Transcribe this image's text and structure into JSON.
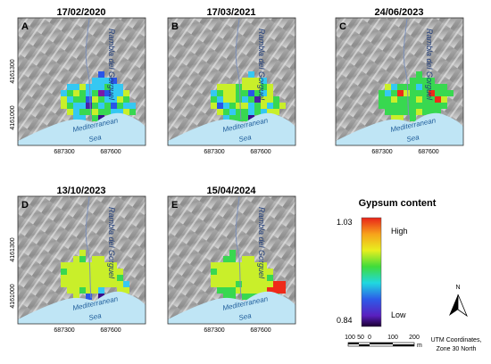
{
  "panels": [
    {
      "date": "17/02/2020",
      "letter": "A",
      "grid": [
        "........d.......",
        ".......cccd.....",
        "...ccacccbcc....",
        "..cbabcbfdcca...",
        "..acbbdabccab...",
        "..abccebcbdbcc..",
        "...acbbabbccab..",
        "....cc.bg.ac...."
      ]
    },
    {
      "date": "17/03/2021",
      "letter": "B",
      "grid": [
        "........c.......",
        ".......aaac.....",
        "...aaabaaaba....",
        "..cbaabbdbca....",
        "..bcaabcbeaab...",
        "..adcbaacbacba..",
        "...abcbbcbcaa...",
        "....cbbbg.......",
        "........b......."
      ]
    },
    {
      "date": "24/06/2023",
      "letter": "C",
      "grid": [
        "........b.......",
        ".......bbbb.....",
        "...acbbbcbbbb...",
        "..bcbhabbbhbbb..",
        "..bbabbbabbha...",
        "..bbbbbbbbbbb...",
        "...bbbbbabbb....",
        "....aa.b........"
      ]
    },
    {
      "date": "13/10/2023",
      "letter": "D",
      "grid": [
        ".....a..........",
        "....ab.aa.......",
        "..aaaaaaaaa.....",
        "..baaaaaaaaa....",
        "..aaaaaaaaab....",
        "..aaaaaaaaaac...",
        "...aabaac..aa...",
        "....a.d.g..a...."
      ]
    },
    {
      "date": "15/04/2024",
      "letter": "E",
      "grid": [
        ".....b..........",
        "....bb.aa.......",
        "..aaaaaaaaa.....",
        "..baaaaaaaaa....",
        "..aaaaaaaaab....",
        "..aaaabaaaaahh..",
        "...bbbaaaaahhh..",
        "....bb.bbbbbb..."
      ]
    }
  ],
  "map_labels": {
    "rambla": "Rambla del Gorguel",
    "sea_line1": "Mediterranean",
    "sea_line2": "Sea",
    "y_tick_top": "4161300",
    "y_tick_bottom": "4161000",
    "x_tick_left": "687300",
    "x_tick_right": "687600"
  },
  "legend": {
    "title": "Gypsum content",
    "max_value": "1.03",
    "min_value": "0.84",
    "high_label": "High",
    "low_label": "Low",
    "north_label": "N",
    "scale_labels": [
      "100",
      "50",
      "0",
      "100",
      "200"
    ],
    "scale_unit": "m",
    "coords_line1": "UTM Coordinates,",
    "coords_line2": "Zone 30 North"
  },
  "color_codes": {
    "a": "#c9ef2a",
    "b": "#38d850",
    "c": "#35c8f2",
    "d": "#2955e8",
    "e": "#4b1fa6",
    "f": "#7a19a8",
    "g": "#3a0d8a",
    "h": "#ee2a19"
  },
  "colors": {
    "sea": "#bfe5f5",
    "stream": "#7b8fb8",
    "frame": "#333333"
  }
}
